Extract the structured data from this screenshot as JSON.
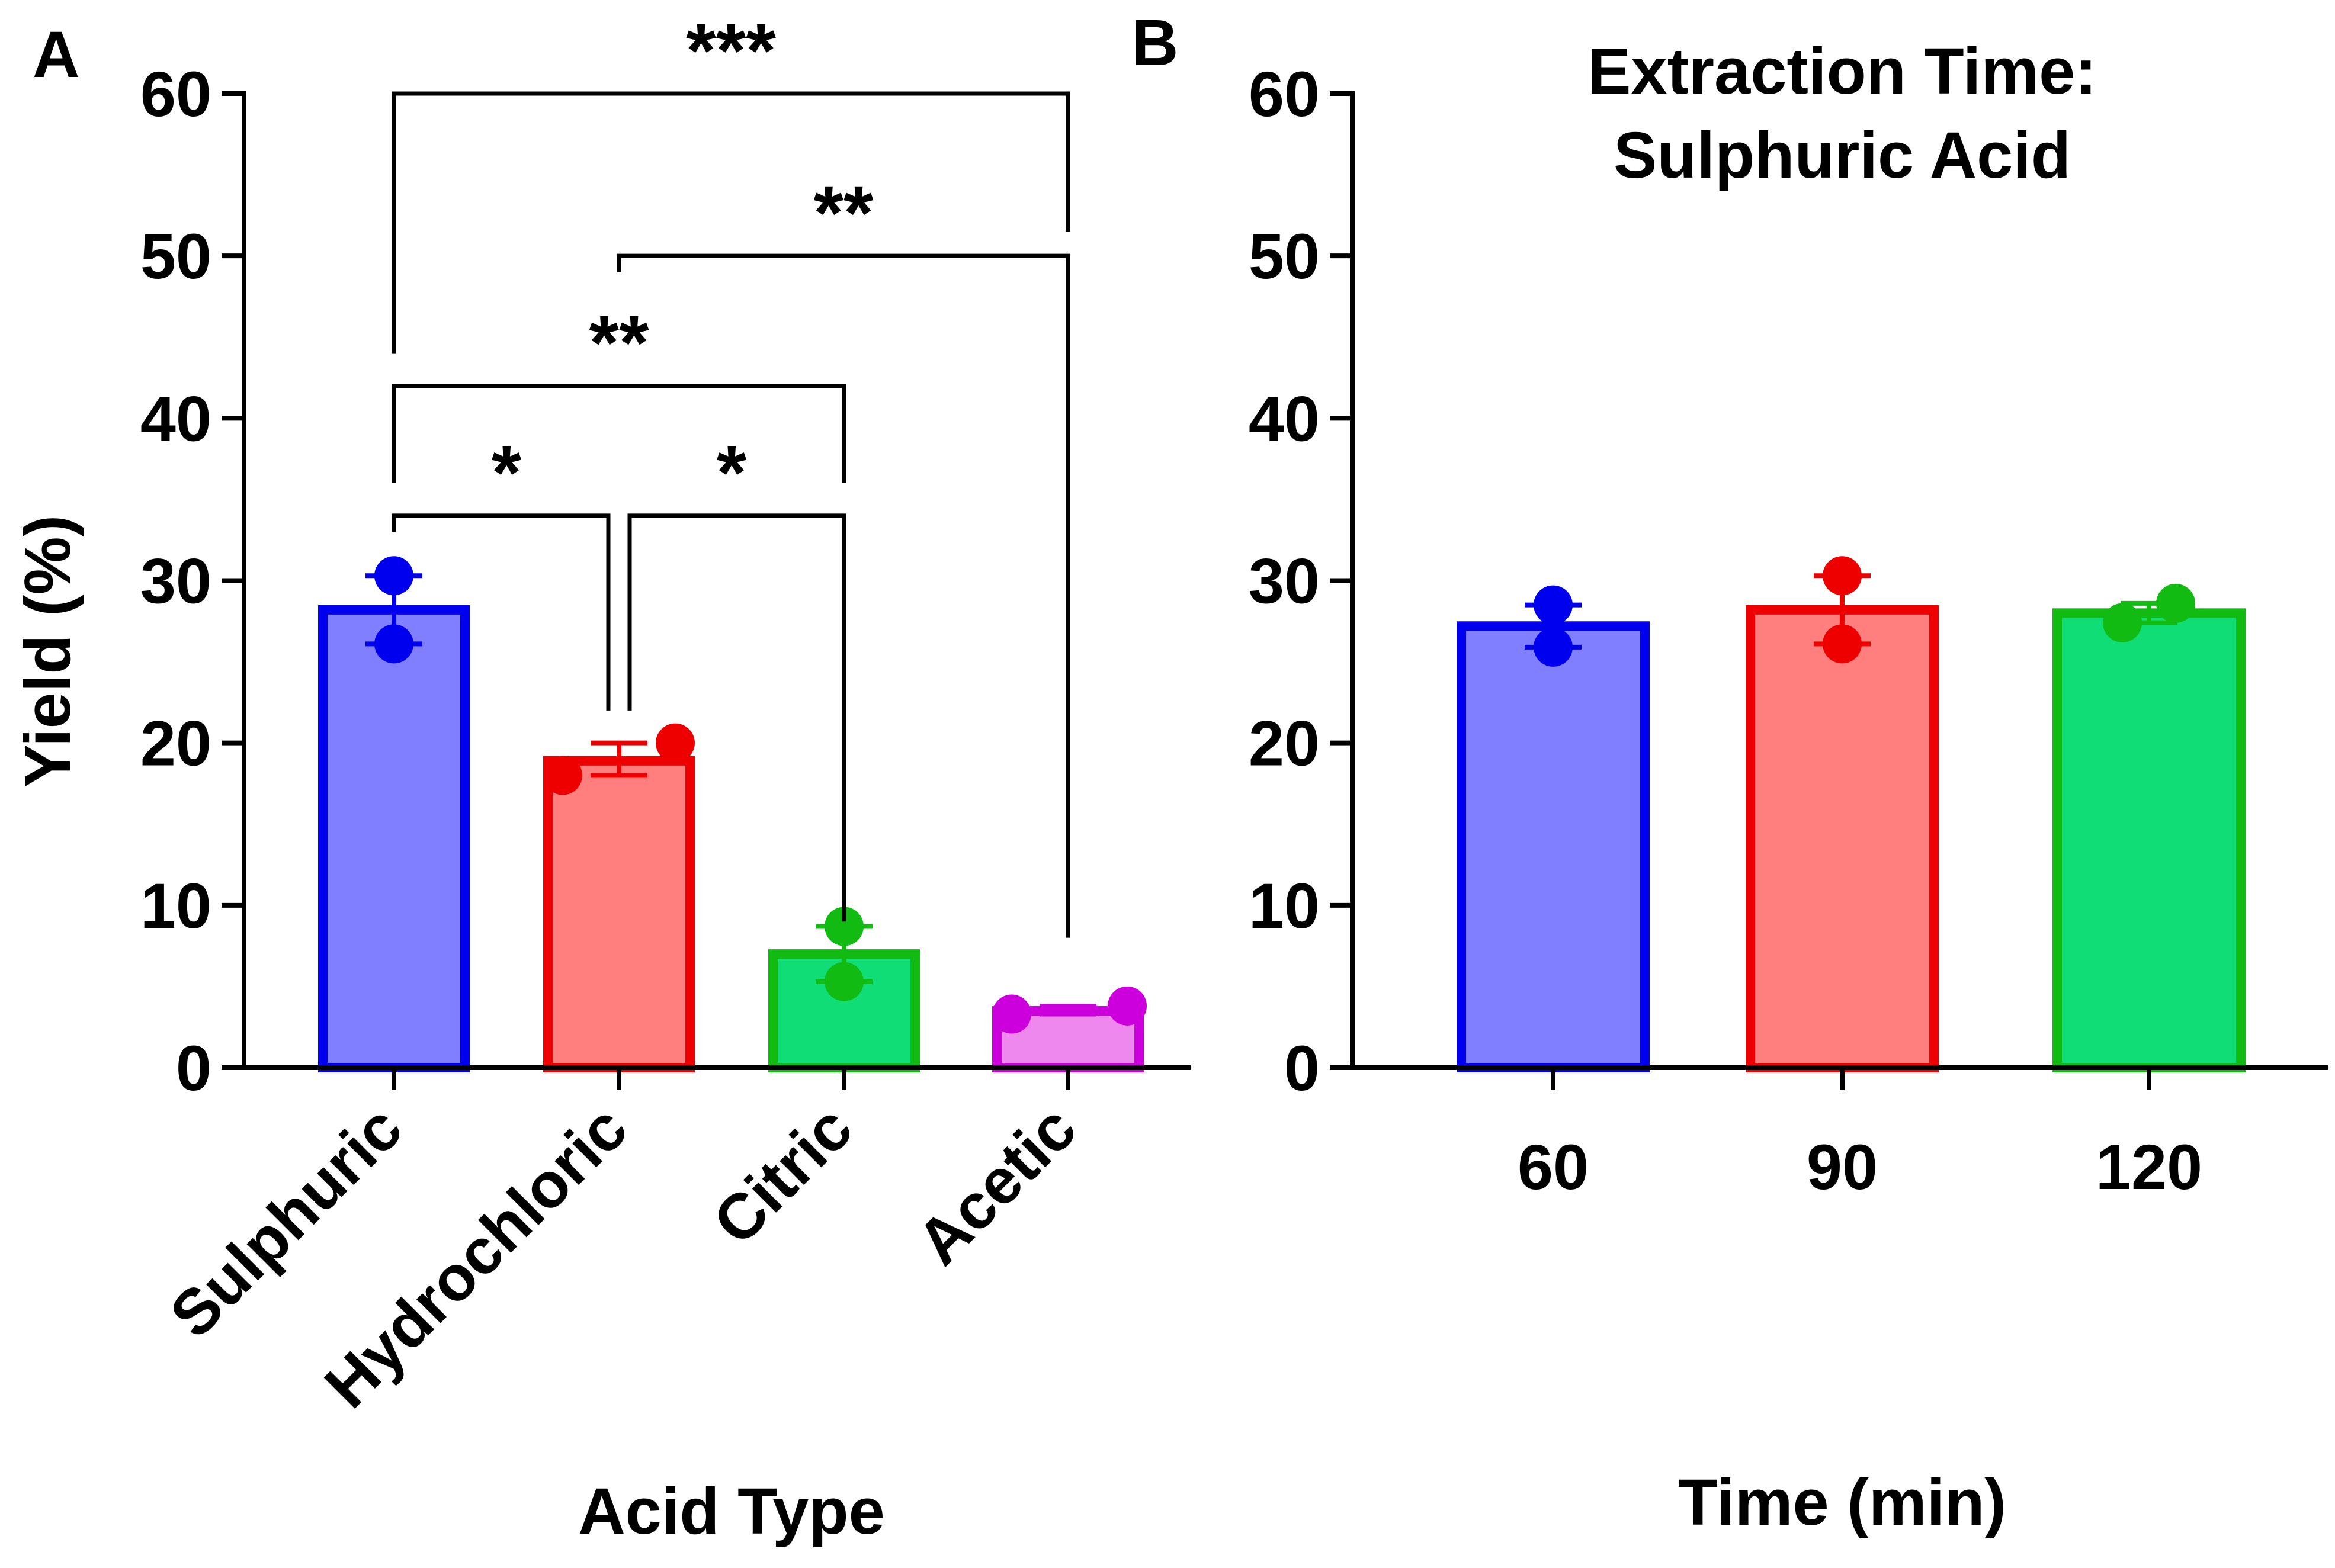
{
  "chart_data": [
    {
      "type": "bar",
      "panel_label": "A",
      "title": "",
      "xlabel": "Acid Type",
      "ylabel": "Yield (%)",
      "ylim": [
        0,
        60
      ],
      "yticks": [
        0,
        10,
        20,
        30,
        40,
        50,
        60
      ],
      "categories": [
        "Sulphuric",
        "Hydrochloric",
        "Citric",
        "Acetic"
      ],
      "values": [
        28.2,
        18.9,
        7.0,
        3.5
      ],
      "error_upper": [
        30.3,
        20.0,
        8.7,
        3.8
      ],
      "error_lower": [
        26.1,
        18.0,
        5.3,
        3.3
      ],
      "points": [
        [
          30.3,
          26.1
        ],
        [
          20.0,
          18.0
        ],
        [
          8.7,
          5.3
        ],
        [
          3.8,
          3.3
        ]
      ],
      "fill_colors": [
        "#7f7fff",
        "#ff7f7f",
        "#11dd77",
        "#ee88ee"
      ],
      "edge_colors": [
        "#0000ee",
        "#ee0000",
        "#11bb11",
        "#cc00dd"
      ],
      "significance": [
        {
          "from": 0,
          "to": 3,
          "label": "***",
          "level": 60
        },
        {
          "from": 1,
          "to": 3,
          "label": "**",
          "level": 50
        },
        {
          "from": 0,
          "to": 2,
          "label": "**",
          "level": 42
        },
        {
          "from": 0,
          "to": 1,
          "label": "*",
          "level": 34
        },
        {
          "from": 1,
          "to": 2,
          "label": "*",
          "level": 34
        }
      ]
    },
    {
      "type": "bar",
      "panel_label": "B",
      "title_lines": [
        "Extraction Time:",
        "Sulphuric Acid"
      ],
      "xlabel": "Time (min)",
      "ylabel": "",
      "ylim": [
        0,
        60
      ],
      "yticks": [
        0,
        10,
        20,
        30,
        40,
        50,
        60
      ],
      "categories": [
        "60",
        "90",
        "120"
      ],
      "values": [
        27.2,
        28.2,
        28.0
      ],
      "error_upper": [
        28.5,
        30.3,
        28.6
      ],
      "error_lower": [
        25.9,
        26.1,
        27.4
      ],
      "points": [
        [
          28.5,
          25.9
        ],
        [
          30.3,
          26.1
        ],
        [
          28.6,
          27.4
        ]
      ],
      "fill_colors": [
        "#7f7fff",
        "#ff7f7f",
        "#11dd77"
      ],
      "edge_colors": [
        "#0000ee",
        "#ee0000",
        "#11bb11"
      ]
    }
  ]
}
